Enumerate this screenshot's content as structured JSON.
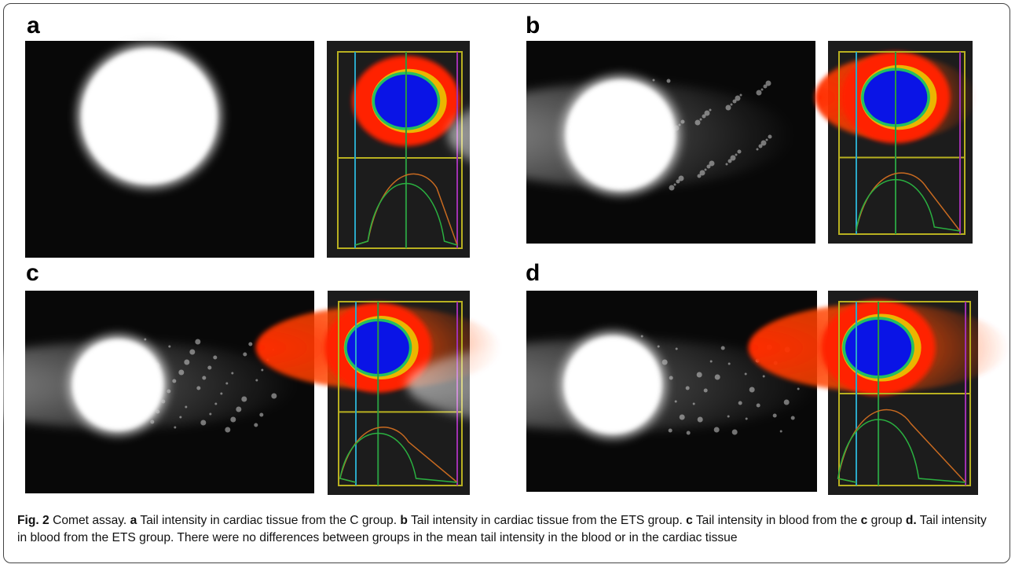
{
  "panels": [
    {
      "label": "a"
    },
    {
      "label": "b"
    },
    {
      "label": "c"
    },
    {
      "label": "d"
    }
  ],
  "caption": {
    "segments": [
      {
        "text": "Fig. 2",
        "bold": true
      },
      {
        "text": " Comet assay. ",
        "bold": false
      },
      {
        "text": "a",
        "bold": true
      },
      {
        "text": " Tail intensity in cardiac tissue from the C group. ",
        "bold": false
      },
      {
        "text": "b",
        "bold": true
      },
      {
        "text": " Tail intensity in cardiac tissue from the ETS group. ",
        "bold": false
      },
      {
        "text": "c",
        "bold": true
      },
      {
        "text": " Tail intensity in blood from the ",
        "bold": false
      },
      {
        "text": "c",
        "bold": true
      },
      {
        "text": " group ",
        "bold": false
      },
      {
        "text": "d.",
        "bold": true
      },
      {
        "text": " Tail intensity in blood from the ETS group. There were no differences between groups in the mean tail intensity in the blood or in the cardiac tissue",
        "bold": false
      }
    ]
  }
}
